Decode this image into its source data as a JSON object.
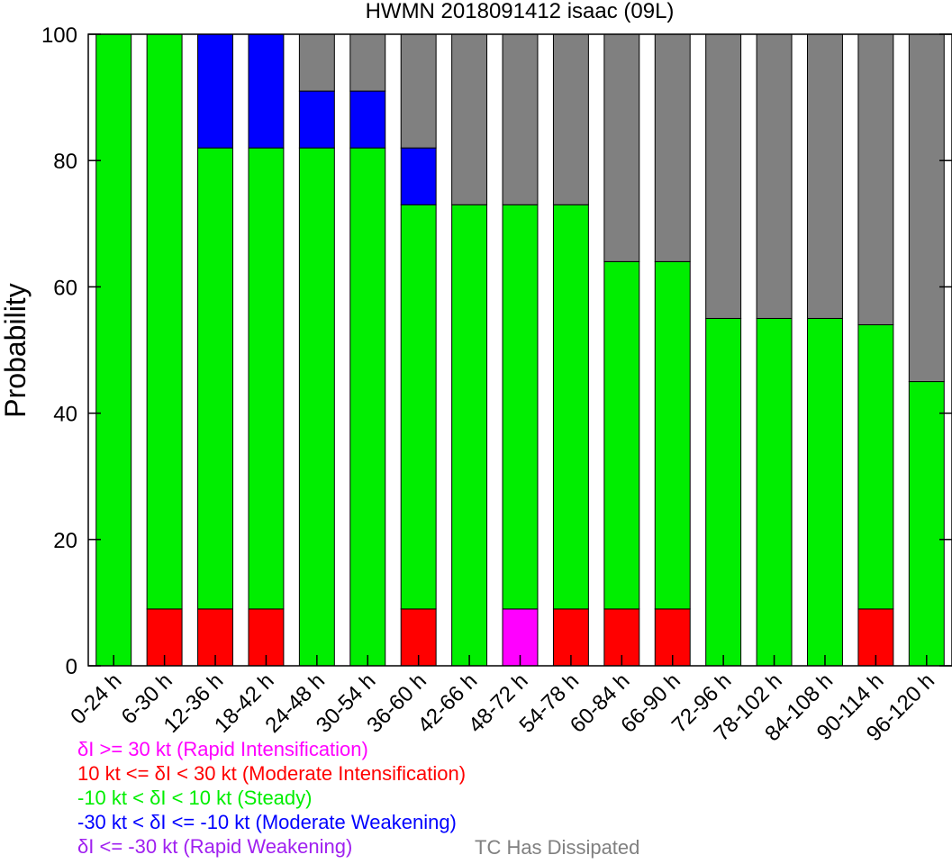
{
  "chart_data": {
    "type": "bar",
    "stacked": true,
    "title": "HWMN 2018091412 isaac (09L)",
    "xlabel": "",
    "ylabel": "Probability",
    "ylim": [
      0,
      100
    ],
    "yticks": [
      0,
      20,
      40,
      60,
      80,
      100
    ],
    "grid": false,
    "categories": [
      "0-24 h",
      "6-30 h",
      "12-36 h",
      "18-42 h",
      "24-48 h",
      "30-54 h",
      "36-60 h",
      "42-66 h",
      "48-72 h",
      "54-78 h",
      "60-84 h",
      "66-90 h",
      "72-96 h",
      "78-102 h",
      "84-108 h",
      "90-114 h",
      "96-120 h"
    ],
    "series": [
      {
        "key": "ri",
        "color": "#ff00ff",
        "values": [
          0,
          0,
          0,
          0,
          0,
          0,
          0,
          0,
          9,
          0,
          0,
          0,
          0,
          0,
          0,
          0,
          0
        ]
      },
      {
        "key": "mi",
        "color": "#ff0000",
        "values": [
          0,
          9,
          9,
          9,
          0,
          0,
          9,
          0,
          0,
          9,
          9,
          9,
          0,
          0,
          0,
          9,
          0
        ]
      },
      {
        "key": "steady",
        "color": "#00ee00",
        "values": [
          100,
          91,
          73,
          73,
          82,
          82,
          64,
          73,
          64,
          64,
          55,
          55,
          55,
          55,
          55,
          45,
          45
        ]
      },
      {
        "key": "mw",
        "color": "#0000ff",
        "values": [
          0,
          0,
          18,
          18,
          9,
          9,
          9,
          0,
          0,
          0,
          0,
          0,
          0,
          0,
          0,
          0,
          0
        ]
      },
      {
        "key": "rw",
        "color": "#a020f0",
        "values": [
          0,
          0,
          0,
          0,
          0,
          0,
          0,
          0,
          0,
          0,
          0,
          0,
          0,
          0,
          0,
          0,
          0
        ]
      },
      {
        "key": "dissipated",
        "color": "#808080",
        "values": [
          0,
          0,
          0,
          0,
          9,
          9,
          18,
          27,
          27,
          27,
          36,
          36,
          45,
          45,
          45,
          46,
          55
        ]
      }
    ]
  },
  "legend": {
    "ri": {
      "text": "δI >= 30 kt (Rapid Intensification)",
      "color": "#ff00ff"
    },
    "mi": {
      "text": "10 kt <= δI < 30 kt (Moderate Intensification)",
      "color": "#ff0000"
    },
    "steady": {
      "text": "-10 kt < δI < 10 kt (Steady)",
      "color": "#00ee00"
    },
    "mw": {
      "text": "-30 kt < δI <= -10 kt (Moderate Weakening)",
      "color": "#0000ff"
    },
    "rw": {
      "text": "δI <= -30 kt (Rapid Weakening)",
      "color": "#a020f0"
    },
    "dissipated": {
      "text": "TC Has Dissipated",
      "color": "#808080"
    }
  }
}
